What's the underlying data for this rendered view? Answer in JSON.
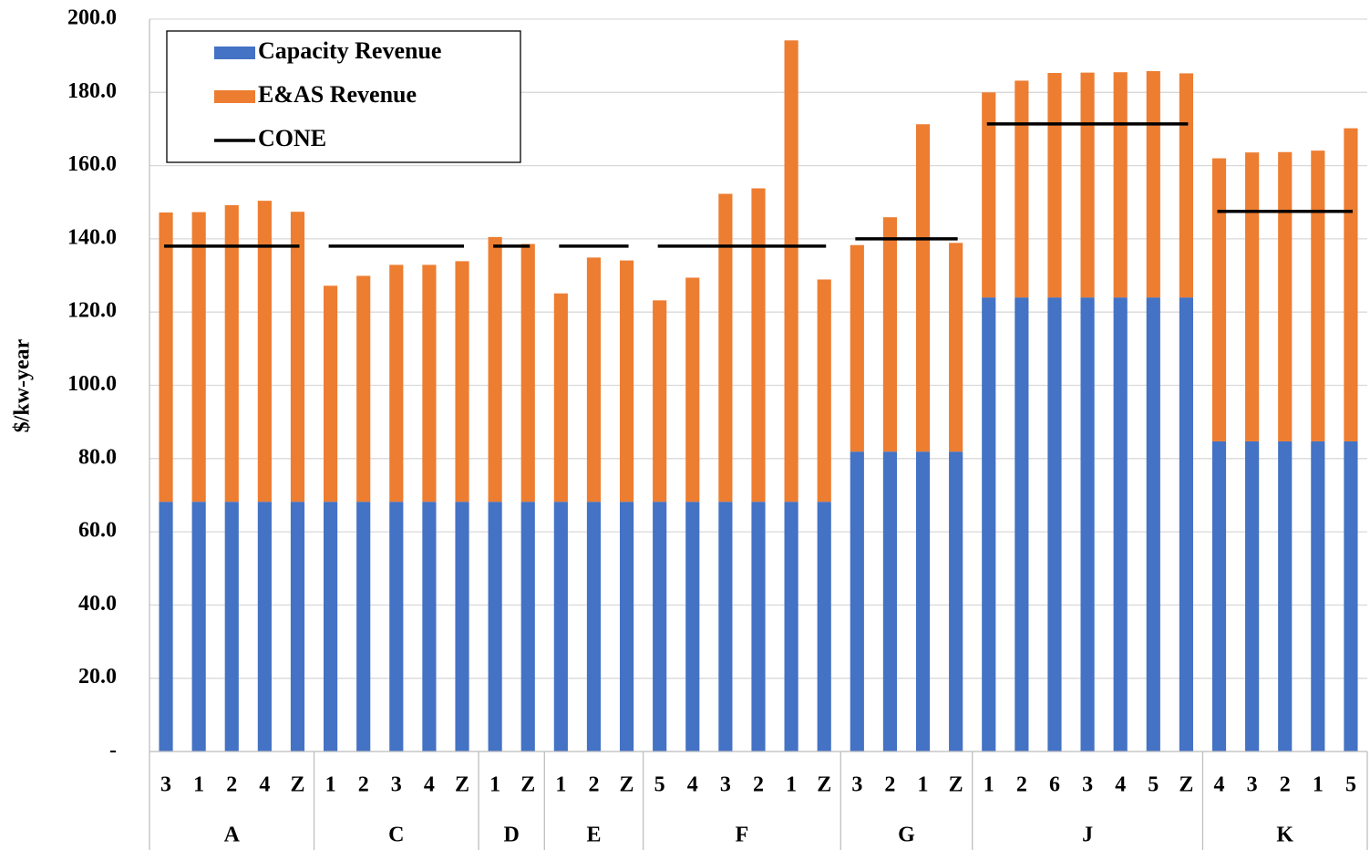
{
  "chart_data": {
    "type": "stacked-bar",
    "y_label": "$/kw-year",
    "ylim": [
      0,
      200
    ],
    "yticks": [
      {
        "value": 0,
        "label": "-"
      },
      {
        "value": 20,
        "label": "20.0"
      },
      {
        "value": 40,
        "label": "40.0"
      },
      {
        "value": 60,
        "label": "60.0"
      },
      {
        "value": 80,
        "label": "80.0"
      },
      {
        "value": 100,
        "label": "100.0"
      },
      {
        "value": 120,
        "label": "120.0"
      },
      {
        "value": 140,
        "label": "140.0"
      },
      {
        "value": 160,
        "label": "160.0"
      },
      {
        "value": 180,
        "label": "180.0"
      },
      {
        "value": 200,
        "label": "200.0"
      }
    ],
    "grid": true,
    "legend": "top-left",
    "groups": [
      {
        "label": "A",
        "categories": [
          "3",
          "1",
          "2",
          "4",
          "Z"
        ]
      },
      {
        "label": "C",
        "categories": [
          "1",
          "2",
          "3",
          "4",
          "Z"
        ]
      },
      {
        "label": "D",
        "categories": [
          "1",
          "Z"
        ]
      },
      {
        "label": "E",
        "categories": [
          "1",
          "2",
          "Z"
        ]
      },
      {
        "label": "F",
        "categories": [
          "5",
          "4",
          "3",
          "2",
          "1",
          "Z"
        ]
      },
      {
        "label": "G",
        "categories": [
          "3",
          "2",
          "1",
          "Z"
        ]
      },
      {
        "label": "J",
        "categories": [
          "1",
          "2",
          "6",
          "3",
          "4",
          "5",
          "Z"
        ]
      },
      {
        "label": "K",
        "categories": [
          "4",
          "3",
          "2",
          "1",
          "5"
        ]
      }
    ],
    "series": [
      {
        "name": "Capacity Revenue",
        "color": "#4472c4",
        "kind": "bar",
        "values": [
          68.2,
          68.2,
          68.2,
          68.2,
          68.2,
          68.2,
          68.2,
          68.2,
          68.2,
          68.2,
          68.2,
          68.2,
          68.2,
          68.2,
          68.2,
          68.2,
          68.2,
          68.2,
          68.2,
          68.2,
          68.2,
          81.9,
          81.9,
          81.9,
          81.9,
          124.0,
          124.0,
          124.0,
          124.0,
          124.0,
          124.0,
          124.0,
          84.7,
          84.7,
          84.7,
          84.7,
          84.7
        ]
      },
      {
        "name": "E&AS Revenue",
        "color": "#ed7d31",
        "kind": "bar",
        "values": [
          79.0,
          79.1,
          81.0,
          82.2,
          79.2,
          59.0,
          61.7,
          64.7,
          64.7,
          65.7,
          72.3,
          70.4,
          56.9,
          66.7,
          65.9,
          55.0,
          61.2,
          84.1,
          85.6,
          126.0,
          60.7,
          56.4,
          64.0,
          89.4,
          57.0,
          56.0,
          59.2,
          61.3,
          61.4,
          61.5,
          61.8,
          61.2,
          77.3,
          78.9,
          79.0,
          79.4,
          85.5
        ]
      },
      {
        "name": "CONE",
        "color": "#000000",
        "kind": "line",
        "values": [
          138.0,
          138.0,
          138.0,
          138.0,
          138.0,
          138.0,
          138.0,
          138.0,
          138.0,
          138.0,
          138.0,
          138.0,
          138.0,
          138.0,
          138.0,
          138.0,
          138.0,
          138.0,
          138.0,
          138.0,
          138.0,
          140.0,
          140.0,
          140.0,
          140.0,
          171.4,
          171.4,
          171.4,
          171.4,
          171.4,
          171.4,
          171.4,
          147.5,
          147.5,
          147.5,
          147.5,
          147.5
        ]
      }
    ]
  }
}
